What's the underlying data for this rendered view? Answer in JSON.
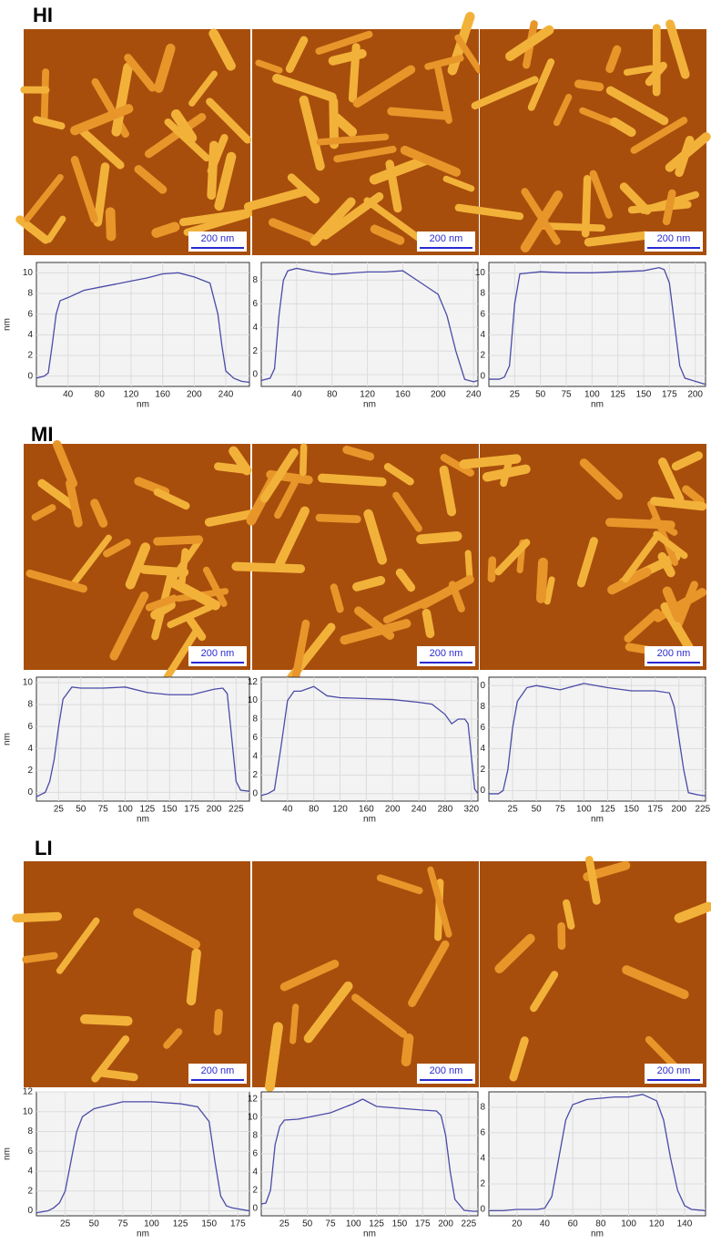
{
  "sections": [
    {
      "label": "HI",
      "scale_bars": [
        "200 nm",
        "200 nm",
        "200 nm"
      ]
    },
    {
      "label": "MI",
      "scale_bars": [
        "200 nm",
        "200 nm",
        "200 nm"
      ]
    },
    {
      "label": "LI",
      "scale_bars": [
        "200 nm",
        "200 nm",
        "200 nm"
      ]
    }
  ],
  "chart_data": [
    {
      "type": "line",
      "x_label": "nm",
      "y_label": "nm",
      "color": "#4b4ba8",
      "grid": true,
      "xlim": [
        0,
        270
      ],
      "ylim": [
        -1,
        11
      ],
      "xticks": [
        40,
        80,
        120,
        160,
        200,
        240
      ],
      "yticks": [
        0,
        2,
        4,
        6,
        8,
        10
      ],
      "x": [
        0,
        10,
        15,
        20,
        25,
        30,
        40,
        60,
        80,
        100,
        120,
        140,
        160,
        180,
        200,
        220,
        230,
        235,
        240,
        250,
        260,
        270
      ],
      "values": [
        -0.2,
        0,
        0.3,
        3,
        6,
        7.3,
        7.6,
        8.3,
        8.6,
        8.9,
        9.2,
        9.5,
        9.9,
        10,
        9.6,
        9,
        6,
        3,
        0.5,
        -0.2,
        -0.5,
        -0.6
      ]
    },
    {
      "type": "line",
      "x_label": "nm",
      "color": "#4b4ba8",
      "grid": true,
      "xlim": [
        0,
        245
      ],
      "ylim": [
        -1,
        9.5
      ],
      "xticks": [
        40,
        80,
        120,
        160,
        200,
        240
      ],
      "yticks": [
        0,
        2,
        4,
        6,
        8
      ],
      "x": [
        0,
        10,
        15,
        20,
        25,
        30,
        40,
        60,
        80,
        100,
        120,
        140,
        160,
        180,
        190,
        200,
        210,
        220,
        230,
        240,
        245
      ],
      "values": [
        -0.5,
        -0.3,
        0.5,
        5,
        8,
        8.8,
        9,
        8.7,
        8.5,
        8.6,
        8.7,
        8.7,
        8.8,
        7.8,
        7.3,
        6.8,
        5,
        2,
        -0.4,
        -0.6,
        -0.5
      ]
    },
    {
      "type": "line",
      "x_label": "nm",
      "color": "#4b4ba8",
      "grid": true,
      "xlim": [
        0,
        210
      ],
      "ylim": [
        -1,
        11
      ],
      "xticks": [
        25,
        50,
        75,
        100,
        125,
        150,
        175,
        200
      ],
      "yticks": [
        0,
        2,
        4,
        6,
        8,
        10
      ],
      "x": [
        0,
        10,
        15,
        20,
        25,
        30,
        50,
        75,
        100,
        125,
        150,
        165,
        170,
        175,
        180,
        185,
        190,
        200,
        210
      ],
      "values": [
        -0.3,
        -0.3,
        -0.1,
        1,
        7,
        9.9,
        10.1,
        10,
        10,
        10.1,
        10.2,
        10.5,
        10.3,
        9,
        5,
        1,
        -0.2,
        -0.5,
        -0.8
      ]
    },
    {
      "type": "line",
      "x_label": "nm",
      "y_label": "nm",
      "color": "#4b4ba8",
      "grid": true,
      "xlim": [
        0,
        240
      ],
      "ylim": [
        -0.8,
        10.5
      ],
      "xticks": [
        25,
        50,
        75,
        100,
        125,
        150,
        175,
        200,
        225
      ],
      "yticks": [
        0,
        2,
        4,
        6,
        8,
        10
      ],
      "x": [
        0,
        10,
        15,
        20,
        25,
        30,
        40,
        50,
        75,
        100,
        125,
        150,
        175,
        200,
        210,
        215,
        220,
        225,
        230,
        240
      ],
      "values": [
        -0.4,
        0,
        1,
        3,
        6,
        8.5,
        9.6,
        9.5,
        9.5,
        9.6,
        9.1,
        8.9,
        8.9,
        9.4,
        9.5,
        9,
        5,
        1,
        0.2,
        0.1
      ]
    },
    {
      "type": "line",
      "x_label": "nm",
      "color": "#4b4ba8",
      "grid": true,
      "xlim": [
        0,
        330
      ],
      "ylim": [
        -0.8,
        12.5
      ],
      "xticks": [
        40,
        80,
        120,
        160,
        200,
        240,
        280,
        320
      ],
      "yticks": [
        0,
        2,
        4,
        6,
        8,
        10,
        12
      ],
      "x": [
        0,
        10,
        20,
        30,
        40,
        50,
        60,
        80,
        100,
        120,
        160,
        200,
        240,
        260,
        280,
        290,
        300,
        310,
        315,
        320,
        325,
        330
      ],
      "values": [
        -0.2,
        0,
        0.4,
        5,
        10,
        11,
        11,
        11.5,
        10.5,
        10.3,
        10.2,
        10.1,
        9.8,
        9.6,
        8.5,
        7.5,
        8,
        8,
        7.5,
        4,
        0.5,
        0
      ]
    },
    {
      "type": "line",
      "x_label": "nm",
      "color": "#4b4ba8",
      "grid": true,
      "xlim": [
        0,
        228
      ],
      "ylim": [
        -1,
        10.8
      ],
      "xticks": [
        25,
        50,
        75,
        100,
        125,
        150,
        175,
        200,
        225
      ],
      "yticks": [
        0,
        2,
        4,
        6,
        8,
        {
          "value": 10,
          "label": "0"
        }
      ],
      "x": [
        0,
        10,
        15,
        20,
        25,
        30,
        40,
        50,
        75,
        100,
        125,
        150,
        175,
        190,
        195,
        200,
        205,
        210,
        220,
        228
      ],
      "values": [
        -0.3,
        -0.3,
        0,
        2,
        6,
        8.5,
        9.8,
        10,
        9.6,
        10.2,
        9.8,
        9.5,
        9.5,
        9.3,
        8,
        5,
        2,
        -0.2,
        -0.4,
        -0.5
      ]
    },
    {
      "type": "line",
      "x_label": "nm",
      "y_label": "nm",
      "color": "#4b4ba8",
      "grid": true,
      "xlim": [
        0,
        185
      ],
      "ylim": [
        -0.5,
        12
      ],
      "xticks": [
        25,
        50,
        75,
        100,
        125,
        150,
        175
      ],
      "yticks": [
        0,
        2,
        4,
        6,
        8,
        10,
        12
      ],
      "x": [
        0,
        10,
        15,
        20,
        25,
        30,
        35,
        40,
        50,
        75,
        100,
        125,
        140,
        150,
        155,
        160,
        165,
        170,
        175,
        185
      ],
      "values": [
        -0.2,
        0,
        0.3,
        0.8,
        2,
        5,
        8,
        9.5,
        10.3,
        11,
        11,
        10.8,
        10.5,
        9,
        5,
        1.5,
        0.5,
        0.3,
        0.2,
        0
      ]
    },
    {
      "type": "line",
      "x_label": "nm",
      "color": "#4b4ba8",
      "grid": true,
      "xlim": [
        0,
        235
      ],
      "ylim": [
        -0.8,
        12.8
      ],
      "xticks": [
        25,
        50,
        75,
        100,
        125,
        150,
        175,
        200,
        225
      ],
      "yticks": [
        0,
        2,
        4,
        6,
        8,
        10,
        12
      ],
      "x": [
        0,
        5,
        10,
        15,
        20,
        25,
        40,
        50,
        75,
        100,
        110,
        125,
        150,
        175,
        190,
        195,
        200,
        205,
        210,
        220,
        230,
        235
      ],
      "values": [
        0.5,
        0.6,
        2,
        7,
        9,
        9.7,
        9.8,
        10,
        10.5,
        11.5,
        12,
        11.2,
        11,
        10.8,
        10.7,
        10.2,
        8,
        4,
        1,
        -0.2,
        -0.3,
        -0.3
      ]
    },
    {
      "type": "line",
      "x_label": "nm",
      "color": "#4b4ba8",
      "grid": true,
      "xlim": [
        0,
        155
      ],
      "ylim": [
        -0.5,
        9.2
      ],
      "xticks": [
        20,
        40,
        60,
        80,
        100,
        120,
        140
      ],
      "yticks": [
        0,
        2,
        4,
        6,
        8
      ],
      "x": [
        0,
        10,
        20,
        30,
        35,
        40,
        45,
        50,
        55,
        60,
        70,
        80,
        90,
        100,
        110,
        120,
        125,
        130,
        135,
        140,
        145,
        155
      ],
      "values": [
        -0.1,
        -0.1,
        0,
        0,
        0,
        0.1,
        1,
        4,
        7,
        8.2,
        8.6,
        8.7,
        8.8,
        8.8,
        9,
        8.5,
        7,
        4,
        1.5,
        0.3,
        0,
        -0.1
      ]
    }
  ]
}
